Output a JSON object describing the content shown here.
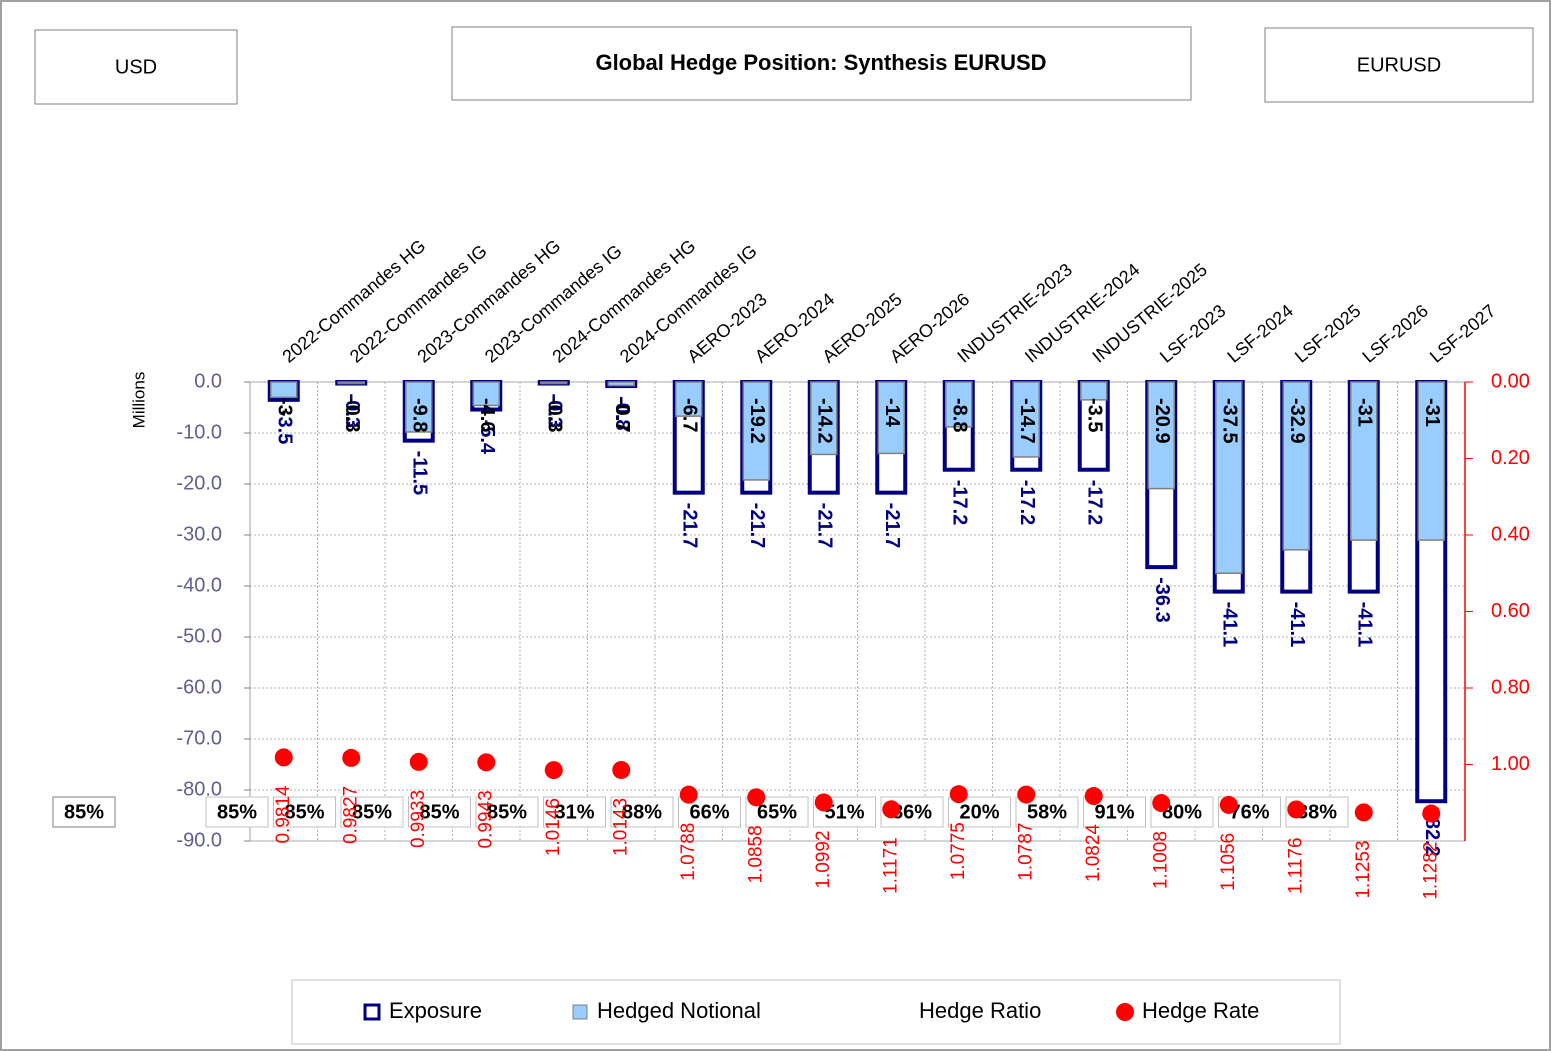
{
  "chart_data": {
    "type": "bar",
    "title": "Global Hedge Position: Synthesis EURUSD",
    "header_left": "USD",
    "header_right": "EURUSD",
    "ylabel": "Millions",
    "categories": [
      "2022-Commandes HG",
      "2022-Commandes IG",
      "2023-Commandes HG",
      "2023-Commandes IG",
      "2024-Commandes HG",
      "2024-Commandes IG",
      "AERO-2023",
      "AERO-2024",
      "AERO-2025",
      "AERO-2026",
      "INDUSTRIE-2023",
      "INDUSTRIE-2024",
      "INDUSTRIE-2025",
      "LSF-2023",
      "LSF-2024",
      "LSF-2025",
      "LSF-2026",
      "LSF-2027"
    ],
    "series": [
      {
        "name": "Exposure",
        "color": "#000080",
        "values": [
          -3.5,
          -0.3,
          -11.5,
          -5.4,
          -0.3,
          -0.8,
          -21.7,
          -21.7,
          -21.7,
          -21.7,
          -17.2,
          -17.2,
          -17.2,
          -36.3,
          -41.1,
          -41.1,
          -41.1,
          -82.2
        ]
      },
      {
        "name": "Hedged Notional",
        "color": "#99ccff",
        "values": [
          -3.0,
          -0.3,
          -9.8,
          -4.6,
          -0.3,
          -0.7,
          -6.7,
          -19.2,
          -14.2,
          -14.0,
          -8.8,
          -14.7,
          -3.5,
          -20.9,
          -37.5,
          -32.9,
          -31.0,
          -31.0
        ]
      },
      {
        "name": "Hedge Ratio",
        "values": [
          85,
          85,
          85,
          85,
          85,
          85,
          31,
          88,
          66,
          65,
          51,
          86,
          20,
          58,
          91,
          80,
          76,
          38
        ],
        "value_labels": [
          "85%",
          "85%",
          "85%",
          "85%",
          "85%",
          "85%",
          "31%",
          "88%",
          "66%",
          "65%",
          "51%",
          "86%",
          "20%",
          "58%",
          "91%",
          "80%",
          "76%",
          "38%"
        ]
      },
      {
        "name": "Hedge Rate",
        "color": "#ff0000",
        "axis": "y2",
        "values": [
          0.9814,
          0.9827,
          0.9933,
          0.9943,
          1.0146,
          1.0143,
          1.0788,
          1.0858,
          1.0992,
          1.1171,
          1.0775,
          1.0787,
          1.0824,
          1.1008,
          1.1056,
          1.1176,
          1.1253,
          1.1282
        ]
      }
    ],
    "ylim": [
      -90,
      0
    ],
    "yticks": [
      {
        "value": 0,
        "label": "0.0"
      },
      {
        "value": -10,
        "label": "-10.0"
      },
      {
        "value": -20,
        "label": "-20.0"
      },
      {
        "value": -30,
        "label": "-30.0"
      },
      {
        "value": -40,
        "label": "-40.0"
      },
      {
        "value": -50,
        "label": "-50.0"
      },
      {
        "value": -60,
        "label": "-60.0"
      },
      {
        "value": -70,
        "label": "-70.0"
      },
      {
        "value": -80,
        "label": "-80.0"
      },
      {
        "value": -90,
        "label": "-90.0"
      }
    ],
    "y2lim": [
      0,
      1.2
    ],
    "y2_reversed": true,
    "y2ticks": [
      {
        "value": 0,
        "label": "0.00"
      },
      {
        "value": 0.2,
        "label": "0.20"
      },
      {
        "value": 0.4,
        "label": "0.40"
      },
      {
        "value": 0.6,
        "label": "0.60"
      },
      {
        "value": 0.8,
        "label": "0.80"
      },
      {
        "value": 1.0,
        "label": "1.00"
      }
    ],
    "grid": true,
    "legend": "bottom"
  }
}
